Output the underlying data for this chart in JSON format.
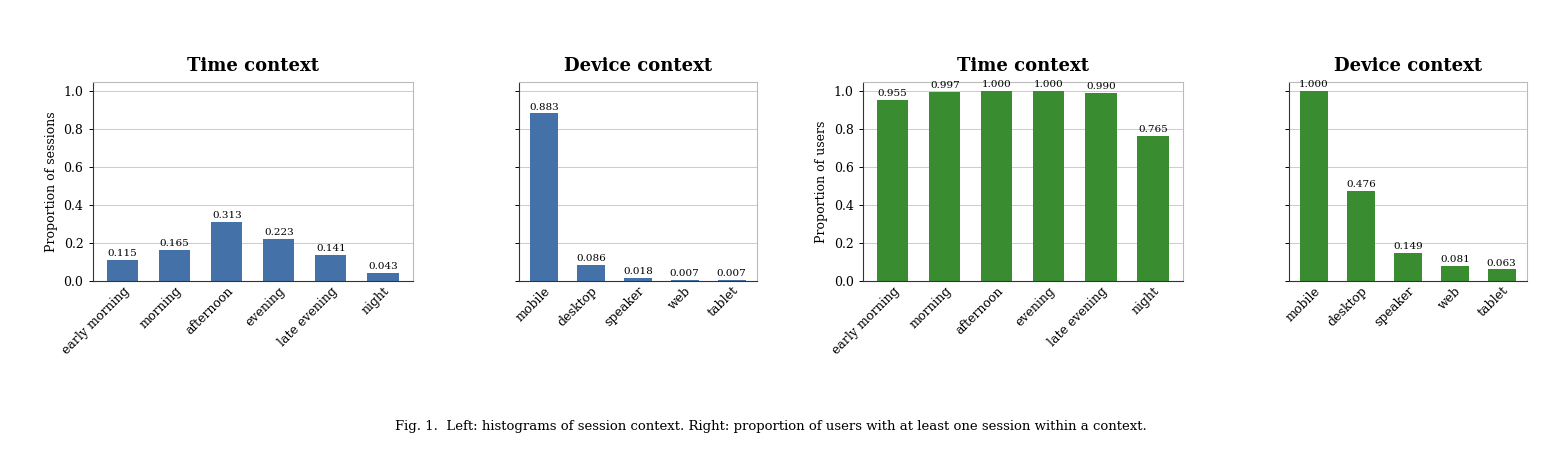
{
  "chart1_title": "Time context",
  "chart1_categories": [
    "early morning",
    "morning",
    "afternoon",
    "evening",
    "late evening",
    "night"
  ],
  "chart1_values": [
    0.115,
    0.165,
    0.313,
    0.223,
    0.141,
    0.043
  ],
  "chart1_color": "#4472a8",
  "chart1_ylabel": "Proportion of sessions",
  "chart1_ylim": [
    0.0,
    1.05
  ],
  "chart2_title": "Device context",
  "chart2_categories": [
    "mobile",
    "desktop",
    "speaker",
    "web",
    "tablet"
  ],
  "chart2_values": [
    0.883,
    0.086,
    0.018,
    0.007,
    0.007
  ],
  "chart2_color": "#4472a8",
  "chart2_ylim": [
    0.0,
    1.05
  ],
  "chart3_title": "Time context",
  "chart3_categories": [
    "early morning",
    "morning",
    "afternoon",
    "evening",
    "late evening",
    "night"
  ],
  "chart3_values": [
    0.955,
    0.997,
    1.0,
    1.0,
    0.99,
    0.765
  ],
  "chart3_color": "#3a8c30",
  "chart3_ylabel": "Proportion of users",
  "chart3_ylim": [
    0.0,
    1.05
  ],
  "chart4_title": "Device context",
  "chart4_categories": [
    "mobile",
    "desktop",
    "speaker",
    "web",
    "tablet"
  ],
  "chart4_values": [
    1.0,
    0.476,
    0.149,
    0.081,
    0.063
  ],
  "chart4_color": "#3a8c30",
  "chart4_ylim": [
    0.0,
    1.05
  ],
  "fig_caption": "Fig. 1.  Left: histograms of session context. Right: proportion of users with at least one session within a context.",
  "background_color": "#ffffff",
  "title_fontsize": 13,
  "label_fontsize": 9,
  "tick_fontsize": 9,
  "bar_label_fontsize": 7.5
}
